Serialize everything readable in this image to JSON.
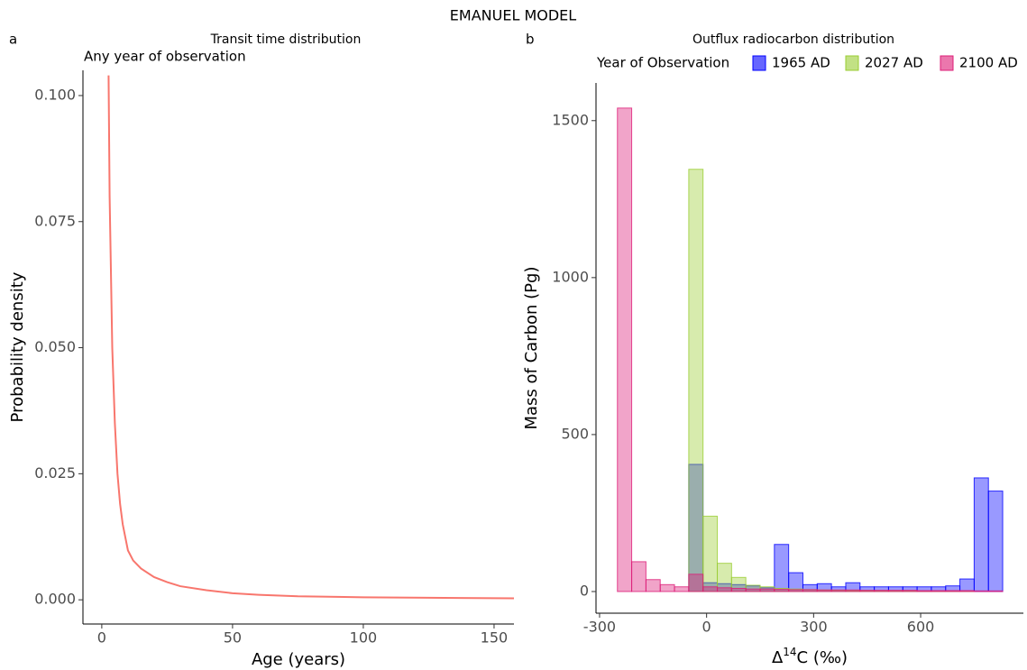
{
  "title": "EMANUEL MODEL",
  "chart_data": [
    {
      "type": "line",
      "panel_label": "a",
      "title": "Transit time distribution",
      "subtitle": "Any year of observation",
      "xlabel": "Age (years)",
      "ylabel": "Probability density",
      "color": "#f8766d",
      "x": [
        2.6,
        3,
        4,
        5,
        6,
        7,
        8,
        10,
        12,
        15,
        20,
        25,
        30,
        40,
        50,
        60,
        75,
        100,
        125,
        157.6
      ],
      "values": [
        0.104,
        0.08,
        0.05,
        0.035,
        0.025,
        0.019,
        0.015,
        0.0098,
        0.0078,
        0.0062,
        0.0045,
        0.0035,
        0.0027,
        0.0019,
        0.0013,
        0.001,
        0.0007,
        0.0005,
        0.0004,
        0.0003
      ],
      "xlim": [
        -7.2,
        157.6
      ],
      "ylim": [
        -0.0048,
        0.105
      ],
      "xticks": [
        0,
        50,
        100,
        150
      ],
      "yticks": [
        {
          "value": 0,
          "label": "0.000"
        },
        {
          "value": 0.025,
          "label": "0.025"
        },
        {
          "value": 0.05,
          "label": "0.050"
        },
        {
          "value": 0.075,
          "label": "0.075"
        },
        {
          "value": 0.1,
          "label": "0.100"
        }
      ]
    },
    {
      "type": "histogram",
      "panel_label": "b",
      "title": "Outflux radiocarbon distribution",
      "xlabel": [
        "Δ",
        "14",
        "C (‰)"
      ],
      "ylabel": "Mass of Carbon (Pg)",
      "legend_title": "Year of Observation",
      "bins": [
        -250,
        -210,
        -170,
        -130,
        -90,
        -50,
        -10,
        30,
        70,
        110,
        150,
        190,
        230,
        270,
        310,
        350,
        390,
        430,
        470,
        510,
        550,
        590,
        630,
        670,
        710,
        750,
        790,
        830
      ],
      "series": [
        {
          "name": "1965 AD",
          "color": "#0000ff",
          "values": [
            0,
            0,
            0,
            0,
            0,
            405,
            28,
            25,
            22,
            18,
            12,
            150,
            60,
            22,
            25,
            15,
            28,
            15,
            15,
            15,
            15,
            15,
            15,
            18,
            40,
            362,
            320
          ]
        },
        {
          "name": "2027 AD",
          "color": "#9acd32",
          "values": [
            0,
            0,
            0,
            0,
            0,
            1345,
            240,
            90,
            45,
            20,
            15,
            10,
            8,
            6,
            5,
            4,
            3,
            3,
            2,
            2,
            2,
            1,
            1,
            1,
            1,
            0,
            0
          ]
        },
        {
          "name": "2100 AD",
          "color": "#dd1c77",
          "values": [
            1540,
            95,
            38,
            22,
            15,
            55,
            15,
            12,
            10,
            8,
            8,
            7,
            6,
            6,
            5,
            5,
            5,
            4,
            4,
            4,
            4,
            3,
            3,
            3,
            3,
            2,
            2
          ]
        }
      ],
      "xlim": [
        -310,
        888
      ],
      "ylim": [
        -69,
        1620
      ],
      "xticks": [
        -300,
        0,
        300,
        600
      ],
      "yticks": [
        0,
        500,
        1000,
        1500
      ]
    }
  ]
}
